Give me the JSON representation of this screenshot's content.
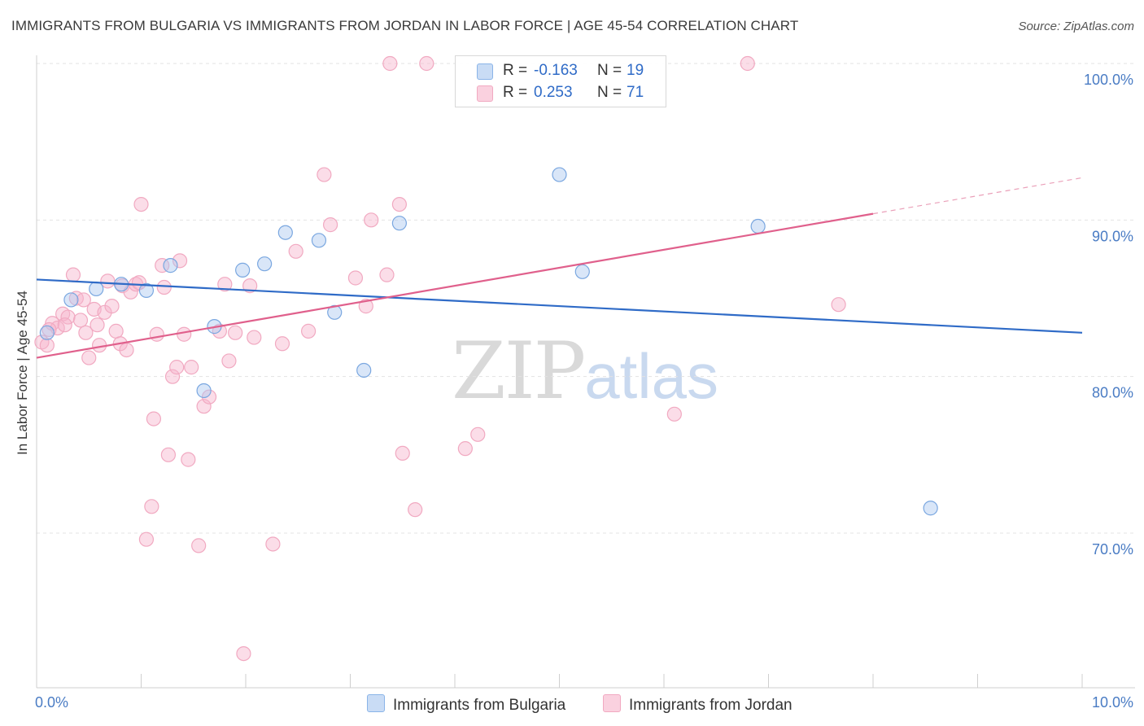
{
  "header": {
    "title": "IMMIGRANTS FROM BULGARIA VS IMMIGRANTS FROM JORDAN IN LABOR FORCE | AGE 45-54 CORRELATION CHART",
    "source": "Source: ZipAtlas.com"
  },
  "watermark": {
    "zip": "ZIP",
    "atlas": "atlas"
  },
  "legend": {
    "bulgaria": {
      "r_label": "R =",
      "r_value": "-0.163",
      "n_label": "N =",
      "n_value": "19"
    },
    "jordan": {
      "r_label": "R =",
      "r_value": "0.253",
      "n_label": "N =",
      "n_value": "71"
    }
  },
  "chart_data": {
    "type": "scatter",
    "title": "IMMIGRANTS FROM BULGARIA VS IMMIGRANTS FROM JORDAN IN LABOR FORCE | AGE 45-54 CORRELATION CHART",
    "xlabel": "",
    "ylabel": "In Labor Force | Age 45-54",
    "xlim": [
      0,
      10
    ],
    "ylim": [
      60.5,
      101
    ],
    "x_tick_labels": [
      "0.0%",
      "10.0%"
    ],
    "y_ticks": [
      70,
      80,
      90,
      100
    ],
    "y_tick_labels": [
      "70.0%",
      "80.0%",
      "90.0%",
      "100.0%"
    ],
    "grid": true,
    "legend_position": "top-center",
    "colors": {
      "bulgaria": "#8ab4e8",
      "jordan": "#f1a9c1",
      "bulgaria_line": "#2f6bc7",
      "jordan_line": "#e0608c"
    },
    "series": [
      {
        "name": "Immigrants from Bulgaria",
        "r": -0.163,
        "n": 19,
        "trend": {
          "x0": 0.0,
          "y0": 86.2,
          "x1": 10.0,
          "y1": 82.8
        },
        "points": [
          [
            0.1,
            82.8
          ],
          [
            0.33,
            84.9
          ],
          [
            0.57,
            85.6
          ],
          [
            0.81,
            85.9
          ],
          [
            1.05,
            85.5
          ],
          [
            1.28,
            87.1
          ],
          [
            1.6,
            79.1
          ],
          [
            1.7,
            83.2
          ],
          [
            1.97,
            86.8
          ],
          [
            2.18,
            87.2
          ],
          [
            2.38,
            89.2
          ],
          [
            2.7,
            88.7
          ],
          [
            2.85,
            84.1
          ],
          [
            3.13,
            80.4
          ],
          [
            3.47,
            89.8
          ],
          [
            5.0,
            92.9
          ],
          [
            5.22,
            86.7
          ],
          [
            6.9,
            89.6
          ],
          [
            8.55,
            71.6
          ]
        ]
      },
      {
        "name": "Immigrants from Jordan",
        "r": 0.253,
        "n": 71,
        "trend": {
          "x0": 0.0,
          "y0": 81.2,
          "x1": 8.0,
          "y1": 90.4,
          "x_dash_end": 10.0,
          "y_dash_end": 92.7
        },
        "points": [
          [
            0.05,
            82.2
          ],
          [
            0.1,
            82.0
          ],
          [
            0.15,
            83.4
          ],
          [
            0.2,
            83.1
          ],
          [
            0.25,
            84.0
          ],
          [
            0.3,
            83.8
          ],
          [
            0.35,
            86.5
          ],
          [
            0.38,
            85.0
          ],
          [
            0.42,
            83.6
          ],
          [
            0.47,
            82.8
          ],
          [
            0.5,
            81.2
          ],
          [
            0.55,
            84.3
          ],
          [
            0.58,
            83.3
          ],
          [
            0.6,
            82.0
          ],
          [
            0.65,
            84.1
          ],
          [
            0.68,
            86.1
          ],
          [
            0.72,
            84.5
          ],
          [
            0.76,
            82.9
          ],
          [
            0.8,
            82.1
          ],
          [
            0.82,
            85.8
          ],
          [
            0.86,
            81.7
          ],
          [
            0.9,
            85.4
          ],
          [
            0.95,
            85.9
          ],
          [
            0.98,
            86.0
          ],
          [
            1.0,
            91.0
          ],
          [
            1.05,
            69.6
          ],
          [
            1.1,
            71.7
          ],
          [
            1.12,
            77.3
          ],
          [
            1.15,
            82.7
          ],
          [
            1.2,
            87.1
          ],
          [
            1.22,
            85.7
          ],
          [
            1.26,
            75.0
          ],
          [
            1.3,
            80.0
          ],
          [
            1.34,
            80.6
          ],
          [
            1.37,
            87.4
          ],
          [
            1.41,
            82.7
          ],
          [
            1.45,
            74.7
          ],
          [
            1.48,
            80.6
          ],
          [
            1.55,
            69.2
          ],
          [
            1.6,
            78.1
          ],
          [
            1.65,
            78.7
          ],
          [
            1.75,
            82.9
          ],
          [
            1.8,
            85.9
          ],
          [
            1.84,
            81.0
          ],
          [
            1.98,
            62.3
          ],
          [
            2.04,
            85.8
          ],
          [
            2.08,
            82.5
          ],
          [
            2.26,
            69.3
          ],
          [
            2.35,
            82.1
          ],
          [
            2.48,
            88.0
          ],
          [
            2.6,
            82.9
          ],
          [
            2.75,
            92.9
          ],
          [
            2.81,
            89.7
          ],
          [
            3.05,
            86.3
          ],
          [
            3.15,
            84.5
          ],
          [
            3.2,
            90.0
          ],
          [
            3.35,
            86.5
          ],
          [
            3.38,
            100.0
          ],
          [
            3.47,
            91.0
          ],
          [
            3.5,
            75.1
          ],
          [
            3.62,
            71.5
          ],
          [
            3.73,
            100.0
          ],
          [
            4.1,
            75.4
          ],
          [
            4.22,
            76.3
          ],
          [
            6.8,
            100.0
          ],
          [
            6.1,
            77.6
          ],
          [
            7.67,
            84.6
          ],
          [
            0.12,
            83.0
          ],
          [
            0.27,
            83.3
          ],
          [
            1.9,
            82.8
          ],
          [
            0.45,
            84.9
          ]
        ]
      }
    ]
  }
}
